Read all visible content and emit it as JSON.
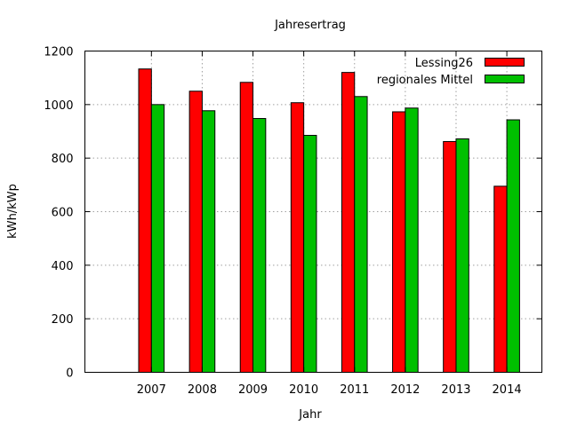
{
  "chart_data": {
    "type": "bar",
    "title": "Jahresertrag",
    "xlabel": "Jahr",
    "ylabel": "kWh/kWp",
    "ylim": [
      0,
      1200
    ],
    "yticks": [
      "0",
      "200",
      "400",
      "600",
      "800",
      "1000",
      "1200"
    ],
    "categories": [
      "2007",
      "2008",
      "2009",
      "2010",
      "2011",
      "2012",
      "2013",
      "2014"
    ],
    "grid": true,
    "legend_position": "top-right",
    "series": [
      {
        "name": "Lessing26",
        "color": "#ff0000",
        "values": [
          1133,
          1050,
          1083,
          1007,
          1120,
          973,
          862,
          695
        ]
      },
      {
        "name": "regionales Mittel",
        "color": "#00c000",
        "values": [
          1000,
          977,
          948,
          885,
          1030,
          987,
          872,
          943
        ]
      }
    ]
  }
}
